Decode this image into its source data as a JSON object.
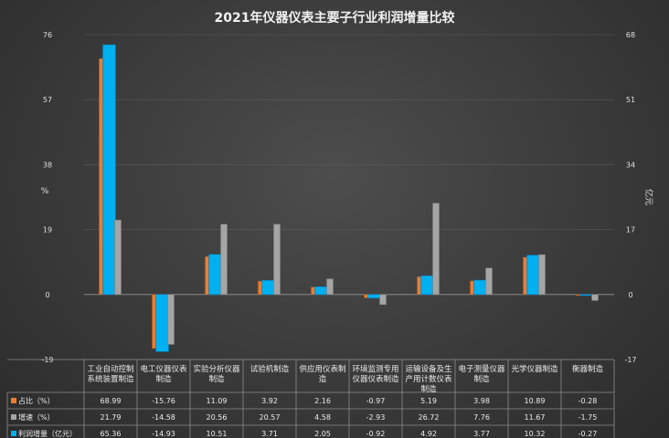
{
  "chart_data": {
    "type": "bar",
    "title": "2021年仪器仪表主要子行业利润增量比较",
    "ylabel_left": "%",
    "ylabel_right": "亿元",
    "left_axis": {
      "min": -19,
      "max": 76,
      "ticks": [
        -19,
        0,
        19,
        38,
        57,
        76
      ]
    },
    "right_axis": {
      "min": -17,
      "max": 68,
      "ticks": [
        -17,
        0,
        17,
        34,
        51,
        68
      ]
    },
    "categories": [
      [
        "工业自动控制",
        "系统装置制造"
      ],
      [
        "电工仪器仪表",
        "制造"
      ],
      [
        "实验分析仪器",
        "制造"
      ],
      [
        "试验机制造"
      ],
      [
        "供应用仪表制",
        "造"
      ],
      [
        "环境监测专用",
        "仪器仪表制造"
      ],
      [
        "运输设备及生",
        "产用计数仪表",
        "制造"
      ],
      [
        "电子测量仪器",
        "制造"
      ],
      [
        "光学仪器制造"
      ],
      [
        "衡器制造"
      ]
    ],
    "series": [
      {
        "name": "占比（%）",
        "axis": "left",
        "color": "#ed7d31",
        "values": [
          68.99,
          -15.76,
          11.09,
          3.92,
          2.16,
          -0.97,
          5.19,
          3.98,
          10.89,
          -0.28
        ]
      },
      {
        "name": "增速（%）",
        "axis": "left",
        "color": "#a5a5a5",
        "values": [
          21.79,
          -14.58,
          20.56,
          20.57,
          4.58,
          -2.93,
          26.72,
          7.76,
          11.67,
          -1.75
        ]
      },
      {
        "name": "利润增量（亿元）",
        "axis": "right",
        "color": "#00b0f0",
        "values": [
          65.36,
          -14.93,
          10.51,
          3.71,
          2.05,
          -0.92,
          4.92,
          3.77,
          10.32,
          -0.27
        ]
      }
    ],
    "table_values": [
      [
        "68.99",
        "-15.76",
        "11.09",
        "3.92",
        "2.16",
        "-0.97",
        "5.19",
        "3.98",
        "10.89",
        "-0.28"
      ],
      [
        "21.79",
        "-14.58",
        "20.56",
        "20.57",
        "4.58",
        "-2.93",
        "26.72",
        "7.76",
        "11.67",
        "-1.75"
      ],
      [
        "65.36",
        "-14.93",
        "10.51",
        "3.71",
        "2.05",
        "-0.92",
        "4.92",
        "3.77",
        "10.32",
        "-0.27"
      ]
    ]
  }
}
